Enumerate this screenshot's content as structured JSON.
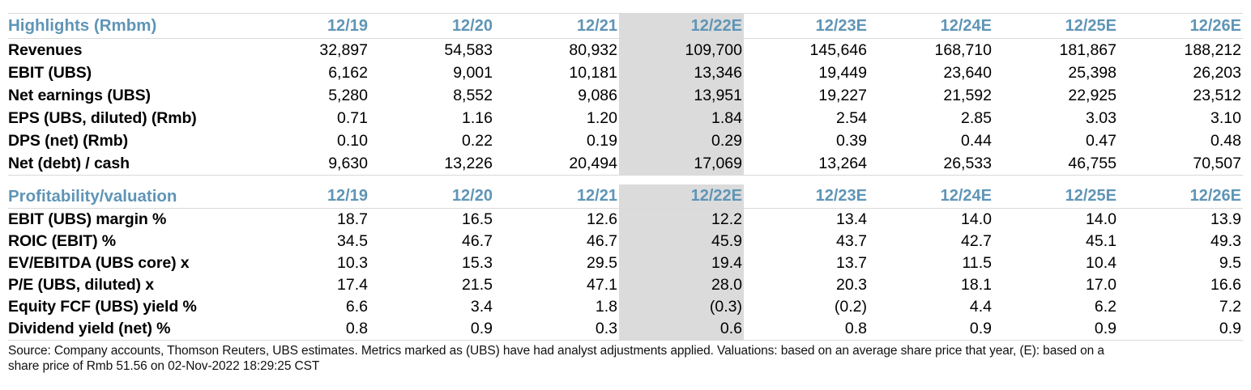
{
  "table": {
    "accent_color": "#5f95b6",
    "highlight_color": "#dbdbdb",
    "rule_color": "#d9d9d9",
    "columns": [
      "12/19",
      "12/20",
      "12/21",
      "12/22E",
      "12/23E",
      "12/24E",
      "12/25E",
      "12/26E"
    ],
    "highlight_column": "12/22E",
    "highlight_column_index": 3,
    "sections": [
      {
        "title": "Highlights (Rmbm)",
        "rows": [
          {
            "label": "Revenues",
            "values": [
              "32,897",
              "54,583",
              "80,932",
              "109,700",
              "145,646",
              "168,710",
              "181,867",
              "188,212"
            ]
          },
          {
            "label": "EBIT (UBS)",
            "values": [
              "6,162",
              "9,001",
              "10,181",
              "13,346",
              "19,449",
              "23,640",
              "25,398",
              "26,203"
            ]
          },
          {
            "label": "Net earnings (UBS)",
            "values": [
              "5,280",
              "8,552",
              "9,086",
              "13,951",
              "19,227",
              "21,592",
              "22,925",
              "23,512"
            ]
          },
          {
            "label": "EPS (UBS, diluted) (Rmb)",
            "values": [
              "0.71",
              "1.16",
              "1.20",
              "1.84",
              "2.54",
              "2.85",
              "3.03",
              "3.10"
            ]
          },
          {
            "label": "DPS (net) (Rmb)",
            "values": [
              "0.10",
              "0.22",
              "0.19",
              "0.29",
              "0.39",
              "0.44",
              "0.47",
              "0.48"
            ]
          },
          {
            "label": "Net (debt) / cash",
            "values": [
              "9,630",
              "13,226",
              "20,494",
              "17,069",
              "13,264",
              "26,533",
              "46,755",
              "70,507"
            ]
          }
        ]
      },
      {
        "title": "Profitability/valuation",
        "rows": [
          {
            "label": "EBIT (UBS) margin %",
            "values": [
              "18.7",
              "16.5",
              "12.6",
              "12.2",
              "13.4",
              "14.0",
              "14.0",
              "13.9"
            ]
          },
          {
            "label": "ROIC (EBIT) %",
            "values": [
              "34.5",
              "46.7",
              "46.7",
              "45.9",
              "43.7",
              "42.7",
              "45.1",
              "49.3"
            ]
          },
          {
            "label": "EV/EBITDA (UBS core) x",
            "values": [
              "10.3",
              "15.3",
              "29.5",
              "19.4",
              "13.7",
              "11.5",
              "10.4",
              "9.5"
            ]
          },
          {
            "label": "P/E (UBS, diluted) x",
            "values": [
              "17.4",
              "21.5",
              "47.1",
              "28.0",
              "20.3",
              "18.1",
              "17.0",
              "16.6"
            ]
          },
          {
            "label": "Equity FCF (UBS) yield %",
            "values": [
              "6.6",
              "3.4",
              "1.8",
              "(0.3)",
              "(0.2)",
              "4.4",
              "6.2",
              "7.2"
            ]
          },
          {
            "label": "Dividend yield (net) %",
            "values": [
              "0.8",
              "0.9",
              "0.3",
              "0.6",
              "0.8",
              "0.9",
              "0.9",
              "0.9"
            ]
          }
        ]
      }
    ]
  },
  "footer": {
    "source_text": "Source: Company accounts, Thomson Reuters, UBS estimates. Metrics marked as (UBS) have had analyst adjustments applied. Valuations: based on an average share price that year, (E): based on a\nshare price of Rmb 51.56 on 02-Nov-2022 18:29:25 CST"
  }
}
